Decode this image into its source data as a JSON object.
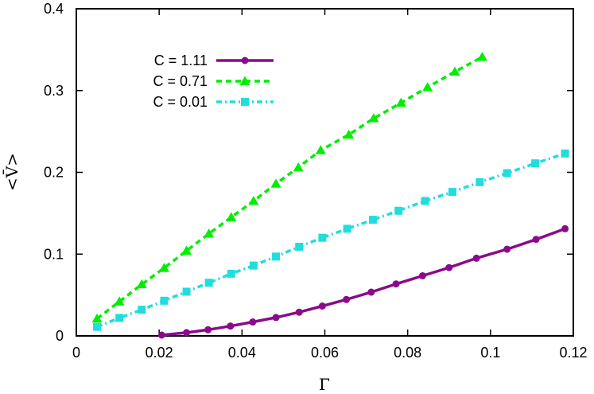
{
  "chart_data": {
    "type": "line",
    "xlabel": "Γ",
    "ylabel": "<V̄>",
    "xlim": [
      0,
      0.12
    ],
    "ylim": [
      0,
      0.4
    ],
    "xticks": [
      "0",
      "0.02",
      "0.04",
      "0.06",
      "0.08",
      "0.1",
      "0.12"
    ],
    "yticks": [
      "0",
      "0.1",
      "0.2",
      "0.3",
      "0.4"
    ],
    "grid": false,
    "legend_position": "top-left",
    "series": [
      {
        "name": "C = 1.11",
        "color": "#8b0a8b",
        "marker": "circle",
        "line_style": "solid",
        "x": [
          0.0206,
          0.0266,
          0.0318,
          0.0372,
          0.0426,
          0.0482,
          0.0538,
          0.0594,
          0.0652,
          0.0712,
          0.0772,
          0.0836,
          0.09,
          0.0966,
          0.104,
          0.111,
          0.118
        ],
        "y": [
          0.001,
          0.004,
          0.0075,
          0.012,
          0.017,
          0.0225,
          0.029,
          0.0365,
          0.0445,
          0.0535,
          0.0635,
          0.0735,
          0.0835,
          0.095,
          0.106,
          0.118,
          0.131
        ]
      },
      {
        "name": "C = 0.71",
        "color": "#00ee00",
        "marker": "triangle",
        "line_style": "dashed",
        "x": [
          0.005,
          0.0104,
          0.0158,
          0.0212,
          0.0266,
          0.032,
          0.0374,
          0.0428,
          0.0482,
          0.0536,
          0.059,
          0.0658,
          0.0718,
          0.0784,
          0.0848,
          0.0914,
          0.098
        ],
        "y": [
          0.021,
          0.042,
          0.063,
          0.083,
          0.104,
          0.125,
          0.145,
          0.165,
          0.186,
          0.206,
          0.227,
          0.246,
          0.266,
          0.285,
          0.304,
          0.323,
          0.341
        ]
      },
      {
        "name": "C = 0.01",
        "color": "#22dddd",
        "marker": "square",
        "line_style": "dash-dot",
        "x": [
          0.005,
          0.0104,
          0.0158,
          0.0212,
          0.0266,
          0.032,
          0.0374,
          0.0428,
          0.0482,
          0.0538,
          0.0594,
          0.0654,
          0.0716,
          0.0778,
          0.0842,
          0.0908,
          0.0974,
          0.104,
          0.1108,
          0.118
        ],
        "y": [
          0.011,
          0.022,
          0.032,
          0.043,
          0.054,
          0.065,
          0.076,
          0.086,
          0.097,
          0.109,
          0.12,
          0.131,
          0.142,
          0.153,
          0.165,
          0.176,
          0.188,
          0.199,
          0.211,
          0.223
        ]
      }
    ]
  }
}
